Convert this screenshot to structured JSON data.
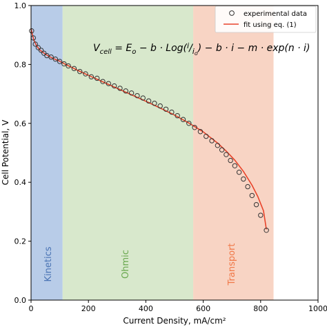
{
  "chart_data": {
    "type": "scatter",
    "xlabel": "Current Density, mA/cm²",
    "ylabel": "Cell Potential, V",
    "xlim": [
      0,
      1000
    ],
    "ylim": [
      0.0,
      1.0
    ],
    "xticks": [
      0,
      200,
      400,
      600,
      800,
      1000
    ],
    "yticks": [
      0.0,
      0.2,
      0.4,
      0.6,
      0.8,
      1.0
    ],
    "grid": false,
    "legend": {
      "position": "top-right",
      "entries": [
        "experimental data",
        "fit using eq. (1)"
      ]
    },
    "regions": [
      {
        "label": "Kinetics",
        "x_start": 0,
        "x_end": 110,
        "color": "#b8cce8"
      },
      {
        "label": "Ohmic",
        "x_start": 110,
        "x_end": 565,
        "color": "#d8e8cc"
      },
      {
        "label": "Transport",
        "x_start": 565,
        "x_end": 845,
        "color": "#f8d4c4"
      }
    ],
    "region_label_colors": [
      "#4a74b4",
      "#6aa84f",
      "#f07848"
    ],
    "equation": "V_cell = E_o − b·Log(i/i_o) − b·i − m·exp(n·i)",
    "series": [
      {
        "name": "experimental data",
        "marker": "open-circle",
        "x": [
          2,
          8,
          15,
          25,
          35,
          45,
          55,
          70,
          85,
          100,
          115,
          130,
          150,
          170,
          190,
          210,
          230,
          250,
          270,
          290,
          310,
          330,
          350,
          370,
          390,
          410,
          430,
          450,
          470,
          490,
          510,
          530,
          550,
          570,
          590,
          610,
          630,
          650,
          665,
          680,
          695,
          710,
          725,
          740,
          755,
          770,
          785,
          800,
          820
        ],
        "y": [
          0.914,
          0.89,
          0.869,
          0.857,
          0.848,
          0.838,
          0.83,
          0.825,
          0.818,
          0.81,
          0.802,
          0.795,
          0.786,
          0.776,
          0.768,
          0.758,
          0.753,
          0.742,
          0.735,
          0.727,
          0.719,
          0.71,
          0.703,
          0.694,
          0.686,
          0.676,
          0.668,
          0.659,
          0.648,
          0.638,
          0.626,
          0.613,
          0.6,
          0.586,
          0.572,
          0.556,
          0.541,
          0.525,
          0.51,
          0.494,
          0.474,
          0.456,
          0.434,
          0.411,
          0.385,
          0.355,
          0.324,
          0.288,
          0.237
        ]
      },
      {
        "name": "fit using eq. (1)",
        "marker": "line",
        "color": "#e8432a",
        "x": [
          0,
          5,
          10,
          20,
          30,
          40,
          50,
          60,
          70,
          80,
          90,
          100,
          120,
          140,
          160,
          180,
          200,
          250,
          300,
          350,
          400,
          450,
          500,
          550,
          600,
          650,
          680,
          710,
          740,
          770,
          790,
          810,
          820
        ],
        "y": [
          0.922,
          0.9,
          0.882,
          0.862,
          0.85,
          0.842,
          0.835,
          0.829,
          0.824,
          0.819,
          0.815,
          0.811,
          0.8,
          0.791,
          0.781,
          0.772,
          0.763,
          0.741,
          0.719,
          0.697,
          0.675,
          0.652,
          0.628,
          0.601,
          0.571,
          0.533,
          0.506,
          0.475,
          0.437,
          0.39,
          0.352,
          0.303,
          0.24
        ]
      }
    ]
  }
}
